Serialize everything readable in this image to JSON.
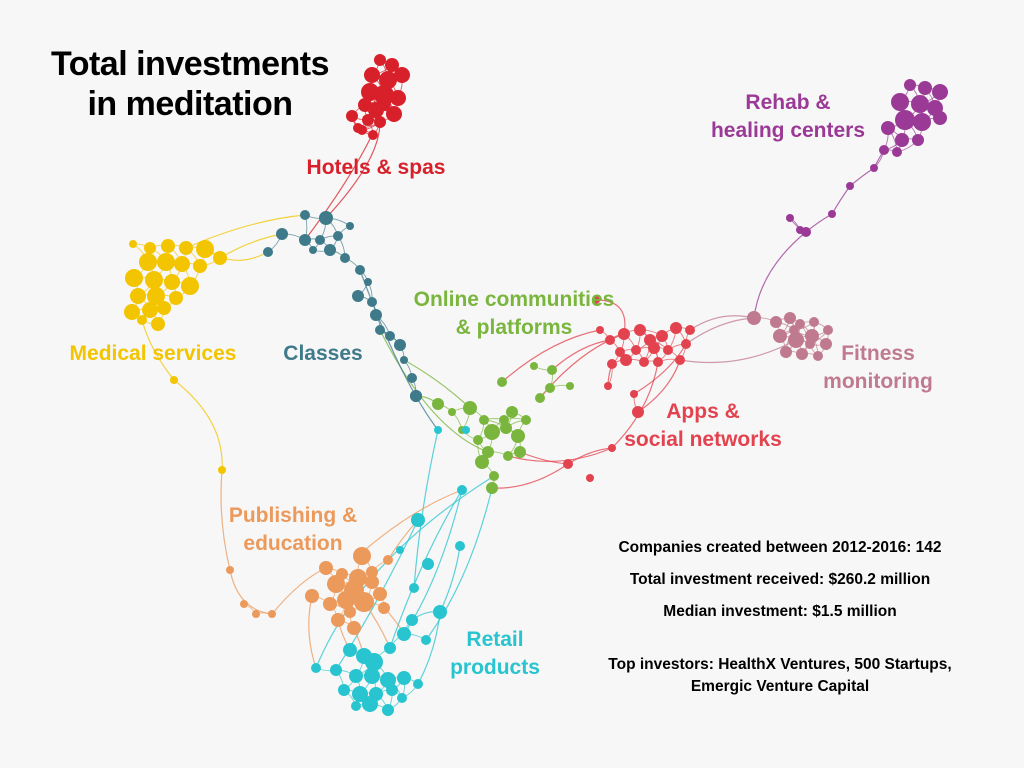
{
  "title": {
    "line1": "Total investments",
    "line2": "in meditation"
  },
  "categories": [
    {
      "id": "hotels",
      "lines": [
        "Hotels & spas"
      ],
      "color": "#d8202b"
    },
    {
      "id": "medical",
      "lines": [
        "Medical services"
      ],
      "color": "#f2c500"
    },
    {
      "id": "classes",
      "lines": [
        "Classes"
      ],
      "color": "#3e7a8a"
    },
    {
      "id": "online",
      "lines": [
        "Online communities",
        "& platforms"
      ],
      "color": "#7ab63e"
    },
    {
      "id": "rehab",
      "lines": [
        "Rehab &",
        "healing centers"
      ],
      "color": "#9a3a96"
    },
    {
      "id": "fitness",
      "lines": [
        "Fitness",
        "monitoring"
      ],
      "color": "#c07a90"
    },
    {
      "id": "apps",
      "lines": [
        "Apps &",
        "social networks"
      ],
      "color": "#e2434f"
    },
    {
      "id": "publishing",
      "lines": [
        "Publishing &",
        "education"
      ],
      "color": "#eb9a5c"
    },
    {
      "id": "retail",
      "lines": [
        "Retail",
        "products"
      ],
      "color": "#28c4cf"
    }
  ],
  "stats": {
    "companies": "Companies created between 2012-2016: 142",
    "total": "Total investment received: $260.2 million",
    "median": "Median investment: $1.5 million"
  },
  "investors": {
    "line1": "Top investors: HealthX Ventures, 500 Startups,",
    "line2": "Emergic Venture Capital"
  }
}
